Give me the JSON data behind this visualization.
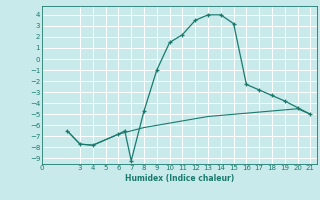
{
  "xlabel": "Humidex (Indice chaleur)",
  "background_color": "#c8eaea",
  "grid_color": "#ffffff",
  "line_color": "#1a7a6e",
  "xlim": [
    0,
    21.5
  ],
  "ylim": [
    -9.5,
    4.8
  ],
  "xticks": [
    0,
    3,
    4,
    5,
    6,
    7,
    8,
    9,
    10,
    11,
    12,
    13,
    14,
    15,
    16,
    17,
    18,
    19,
    20,
    21
  ],
  "yticks": [
    4,
    3,
    2,
    1,
    0,
    -1,
    -2,
    -3,
    -4,
    -5,
    -6,
    -7,
    -8,
    -9
  ],
  "line1_x": [
    2,
    3,
    4,
    6,
    6.5,
    7,
    8,
    9,
    10,
    11,
    12,
    13,
    14,
    15,
    16,
    17,
    18,
    19,
    20,
    21
  ],
  "line1_y": [
    -6.5,
    -7.7,
    -7.8,
    -6.8,
    -6.5,
    -9.2,
    -4.7,
    -1.0,
    1.5,
    2.2,
    3.5,
    4.0,
    4.0,
    3.2,
    -2.3,
    -2.8,
    -3.3,
    -3.8,
    -4.4,
    -5.0
  ],
  "line2_x": [
    2,
    3,
    4,
    5,
    6,
    7,
    8,
    9,
    10,
    11,
    12,
    13,
    14,
    15,
    16,
    17,
    18,
    19,
    20,
    21
  ],
  "line2_y": [
    -6.5,
    -7.7,
    -7.8,
    -7.3,
    -6.8,
    -6.5,
    -6.2,
    -6.0,
    -5.8,
    -5.6,
    -5.4,
    -5.2,
    -5.1,
    -5.0,
    -4.9,
    -4.8,
    -4.7,
    -4.6,
    -4.5,
    -5.0
  ]
}
